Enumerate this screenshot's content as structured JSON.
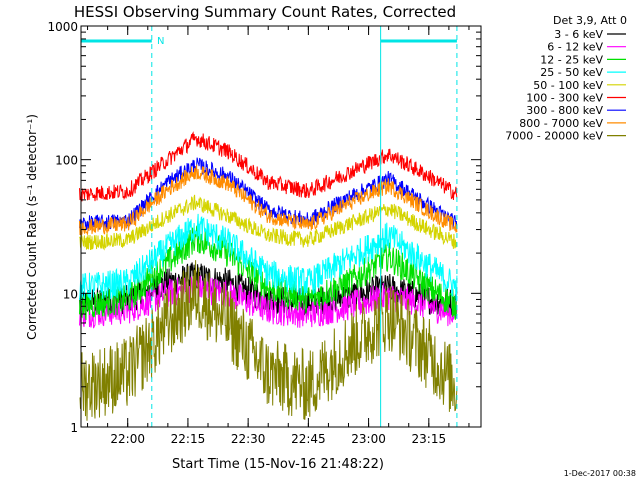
{
  "colors": {
    "ch1": "#000000",
    "ch2": "#ff00ff",
    "ch3": "#00e000",
    "ch4": "#00ffff",
    "ch5": "#d4d400",
    "ch6": "#ff0000",
    "ch7": "#0000ff",
    "ch8": "#ff8c00",
    "ch9": "#808000",
    "marker": "#00e5e5"
  },
  "chart_data": {
    "type": "line",
    "title": "HESSI Observing Summary Count Rates, Corrected",
    "xlabel": "Start Time (15-Nov-16 21:48:22)",
    "ylabel": "Corrected Count Rate (s⁻¹ detector⁻¹)",
    "yscale": "log",
    "ylim": [
      1,
      1000
    ],
    "xlim": [
      "21:48:22",
      "23:28:00"
    ],
    "x_ticks": [
      "22:00",
      "22:15",
      "22:30",
      "22:45",
      "23:00",
      "23:15"
    ],
    "y_ticks": [
      "1",
      "10",
      "100",
      "1000"
    ],
    "grid": false,
    "legend_title": "Det 3,9, Att 0",
    "legend_position": "top-right",
    "annotation_text": "N",
    "night_intervals": [
      [
        "21:48:22",
        "22:06:00"
      ],
      [
        "23:03:00",
        "23:22:00"
      ]
    ],
    "dashed_markers": [
      "22:06:00",
      "23:22:00"
    ],
    "solid_markers": [
      "21:48:22",
      "23:03:00"
    ],
    "series": [
      {
        "name": "3 - 6 keV",
        "color": "#000000",
        "x": [
          "21:48",
          "22:00",
          "22:10",
          "22:17",
          "22:25",
          "22:35",
          "22:45",
          "22:55",
          "23:05",
          "23:15",
          "23:22"
        ],
        "values": [
          8.5,
          9,
          12,
          13.5,
          12,
          9,
          8.5,
          9.5,
          11,
          9,
          8.5
        ]
      },
      {
        "name": "6 - 12 keV",
        "color": "#ff00ff",
        "x": [
          "21:48",
          "22:00",
          "22:10",
          "22:17",
          "22:25",
          "22:35",
          "22:45",
          "22:55",
          "23:05",
          "23:15",
          "23:22"
        ],
        "values": [
          7,
          7.5,
          10,
          11,
          10,
          7.5,
          7,
          8,
          9.5,
          8,
          7
        ]
      },
      {
        "name": "12 - 25 keV",
        "color": "#00e000",
        "x": [
          "21:48",
          "22:00",
          "22:10",
          "22:17",
          "22:25",
          "22:35",
          "22:45",
          "22:55",
          "23:05",
          "23:15",
          "23:22"
        ],
        "values": [
          8,
          9,
          17,
          26,
          20,
          11,
          9,
          12,
          19,
          11,
          8
        ]
      },
      {
        "name": "25 - 50 keV",
        "color": "#00ffff",
        "x": [
          "21:48",
          "22:00",
          "22:10",
          "22:17",
          "22:25",
          "22:35",
          "22:45",
          "22:55",
          "23:05",
          "23:15",
          "23:22"
        ],
        "values": [
          11,
          12,
          22,
          32,
          24,
          14,
          12,
          18,
          27,
          16,
          11
        ]
      },
      {
        "name": "50 - 100 keV",
        "color": "#d4d400",
        "x": [
          "21:48",
          "22:00",
          "22:10",
          "22:17",
          "22:25",
          "22:35",
          "22:45",
          "22:55",
          "23:05",
          "23:15",
          "23:22"
        ],
        "values": [
          24,
          25,
          38,
          48,
          38,
          27,
          25,
          33,
          43,
          30,
          24
        ]
      },
      {
        "name": "100 - 300 keV",
        "color": "#ff0000",
        "x": [
          "21:48",
          "22:00",
          "22:10",
          "22:17",
          "22:25",
          "22:35",
          "22:45",
          "22:55",
          "23:05",
          "23:15",
          "23:22"
        ],
        "values": [
          55,
          58,
          100,
          145,
          115,
          68,
          58,
          80,
          110,
          75,
          55
        ]
      },
      {
        "name": "300 - 800 keV",
        "color": "#0000ff",
        "x": [
          "21:48",
          "22:00",
          "22:10",
          "22:17",
          "22:25",
          "22:35",
          "22:45",
          "22:55",
          "23:05",
          "23:15",
          "23:22"
        ],
        "values": [
          33,
          35,
          68,
          92,
          75,
          42,
          35,
          52,
          72,
          45,
          33
        ]
      },
      {
        "name": "800 - 7000 keV",
        "color": "#ff8c00",
        "x": [
          "21:48",
          "22:00",
          "22:10",
          "22:17",
          "22:25",
          "22:35",
          "22:45",
          "22:55",
          "23:05",
          "23:15",
          "23:22"
        ],
        "values": [
          31,
          33,
          60,
          82,
          66,
          38,
          32,
          47,
          64,
          41,
          31
        ]
      },
      {
        "name": "7000 - 20000 keV",
        "color": "#808000",
        "x": [
          "21:48",
          "22:00",
          "22:10",
          "22:17",
          "22:25",
          "22:35",
          "22:45",
          "22:55",
          "23:05",
          "23:15",
          "23:22"
        ],
        "values": [
          2,
          2.5,
          6,
          10,
          6,
          2.5,
          2,
          4,
          7,
          3.5,
          2
        ]
      }
    ]
  },
  "footer": {
    "timestamp": "1-Dec-2017 00:38"
  }
}
